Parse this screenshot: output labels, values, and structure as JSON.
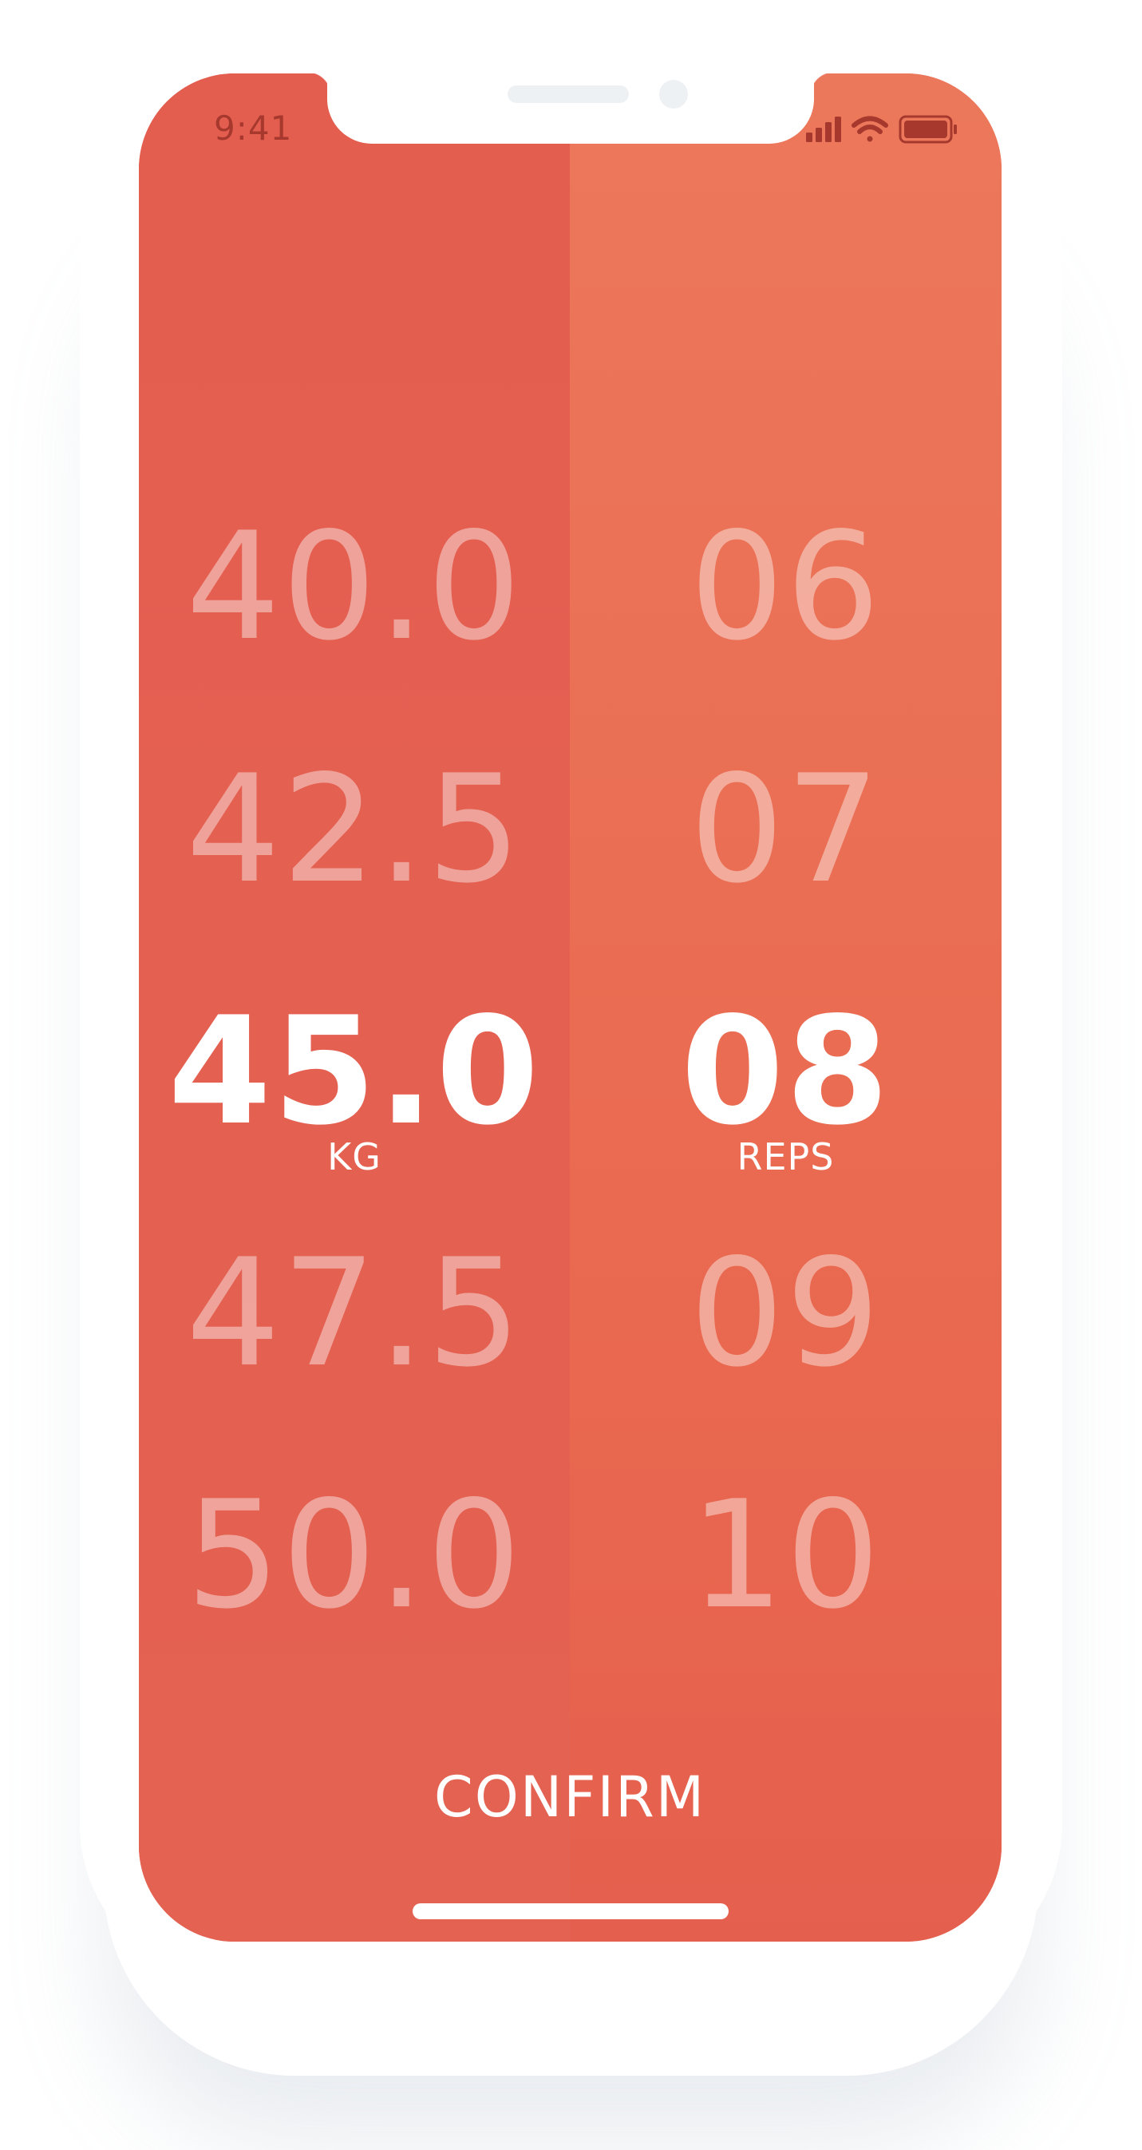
{
  "status_bar": {
    "time": "9:41",
    "icons": [
      "signal-icon",
      "wifi-icon",
      "battery-icon"
    ]
  },
  "weight_picker": {
    "values": [
      "40.0",
      "42.5",
      "45.0",
      "47.5",
      "50.0"
    ],
    "selected": "45.0",
    "unit": "KG"
  },
  "reps_picker": {
    "values": [
      "06",
      "07",
      "08",
      "09",
      "10"
    ],
    "selected": "08",
    "unit": "REPS"
  },
  "confirm_label": "CONFIRM",
  "colors": {
    "left_column": "#e45e50",
    "right_column": "#ec785b",
    "selected_text": "#ffffff",
    "status_text": "#a6382d"
  }
}
